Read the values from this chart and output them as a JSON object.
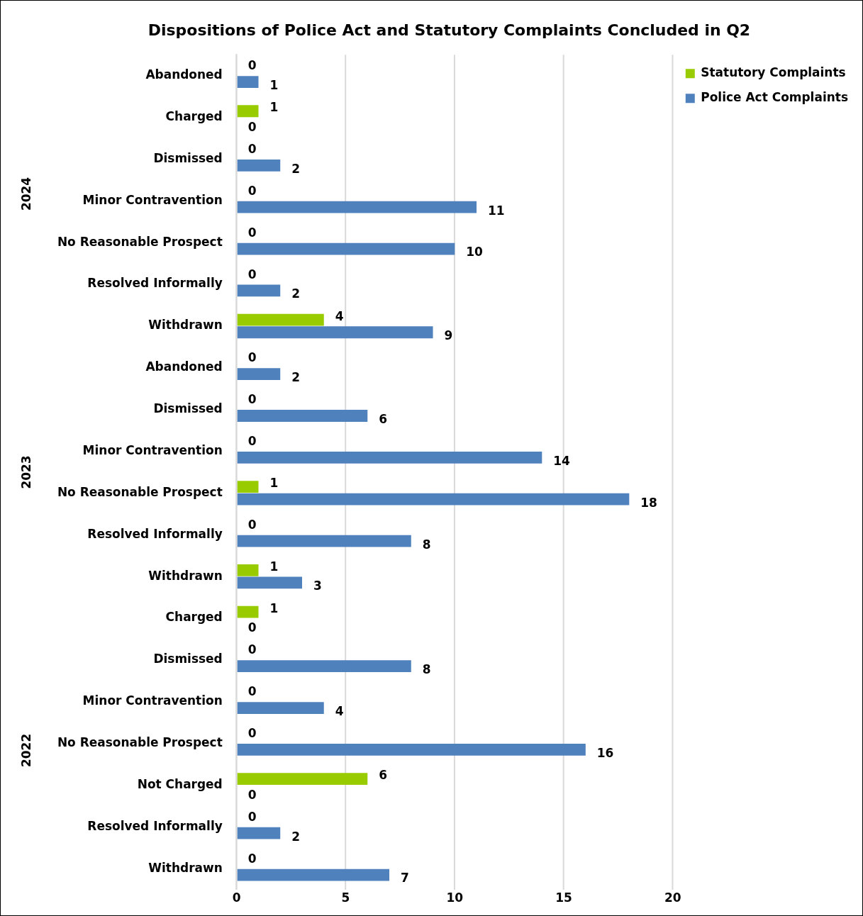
{
  "chart_data": {
    "type": "bar",
    "orientation": "horizontal",
    "title": "Dispositions of Police Act and Statutory Complaints Concluded in Q2",
    "categories": [
      "Abandoned",
      "Charged",
      "Dismissed",
      "Minor Contravention",
      "No Reasonable Prospect",
      "Resolved Informally",
      "Withdrawn",
      "Abandoned",
      "Dismissed",
      "Minor Contravention",
      "No Reasonable Prospect",
      "Resolved Informally",
      "Withdrawn",
      "Charged",
      "Dismissed",
      "Minor Contravention",
      "No Reasonable Prospect",
      "Not Charged",
      "Resolved Informally",
      "Withdrawn"
    ],
    "series": [
      {
        "name": "Statutory Complaints",
        "color": "#99cc00",
        "values": [
          0,
          1,
          0,
          0,
          0,
          0,
          4,
          0,
          0,
          0,
          1,
          0,
          1,
          1,
          0,
          0,
          0,
          6,
          0,
          0
        ]
      },
      {
        "name": "Police Act Complaints",
        "color": "#4f81bd",
        "values": [
          1,
          0,
          2,
          11,
          10,
          2,
          9,
          2,
          6,
          14,
          18,
          8,
          3,
          0,
          8,
          4,
          16,
          0,
          2,
          7
        ]
      }
    ],
    "xlim": [
      0,
      20
    ],
    "xticks": [
      0,
      5,
      10,
      15,
      20
    ],
    "grid": "x",
    "legend": "top right",
    "data_labels": true,
    "annotations": [
      "2024",
      "2023",
      "2022"
    ]
  }
}
